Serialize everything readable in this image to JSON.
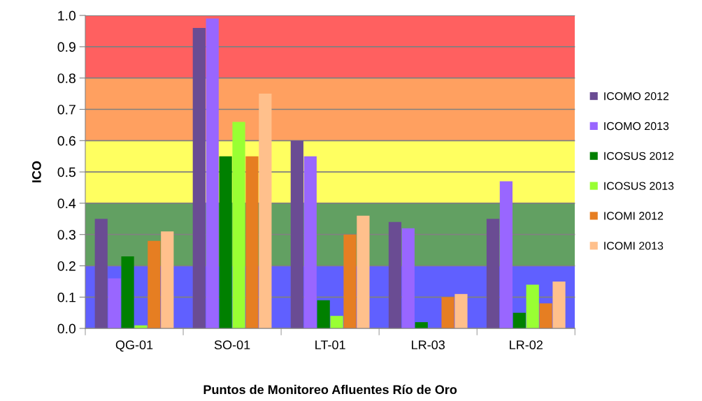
{
  "chart_data": {
    "type": "bar",
    "xlabel": "Puntos de Monitoreo Afluentes Río de Oro",
    "ylabel": "ICO",
    "categories": [
      "QG-01",
      "SO-01",
      "LT-01",
      "LR-03",
      "LR-02"
    ],
    "series": [
      {
        "name": "ICOMO 2012",
        "color": "#6a4c93",
        "values": [
          0.35,
          0.96,
          0.6,
          0.34,
          0.35
        ]
      },
      {
        "name": "ICOMO 2013",
        "color": "#9966ff",
        "values": [
          0.16,
          0.99,
          0.55,
          0.32,
          0.47
        ]
      },
      {
        "name": "ICOSUS 2012",
        "color": "#008000",
        "values": [
          0.23,
          0.55,
          0.09,
          0.02,
          0.05
        ]
      },
      {
        "name": "ICOSUS 2013",
        "color": "#99ff33",
        "values": [
          0.01,
          0.66,
          0.04,
          0,
          0.14
        ]
      },
      {
        "name": "ICOMI 2012",
        "color": "#e67e22",
        "values": [
          0.28,
          0.55,
          0.3,
          0.1,
          0.08
        ]
      },
      {
        "name": "ICOMI 2013",
        "color": "#ffc08c",
        "values": [
          0.31,
          0.75,
          0.36,
          0.11,
          0.15
        ]
      }
    ],
    "ylim": [
      0,
      1
    ],
    "yticks": [
      {
        "value": 0,
        "label": "0.0"
      },
      0.1,
      0.2,
      0.3,
      0.4,
      0.5,
      0.6,
      0.7,
      0.8,
      0.9,
      {
        "value": 1,
        "label": "1.0"
      }
    ],
    "bands": [
      {
        "axis": "y",
        "from": 0,
        "to": 0.2,
        "color": "#6060ff"
      },
      {
        "axis": "y",
        "from": 0.2,
        "to": 0.4,
        "color": "#62a062"
      },
      {
        "axis": "y",
        "from": 0.4,
        "to": 0.6,
        "color": "#ffff60"
      },
      {
        "axis": "y",
        "from": 0.6,
        "to": 0.8,
        "color": "#ffa060"
      },
      {
        "axis": "y",
        "from": 0.8,
        "to": 1.0,
        "color": "#ff6060"
      }
    ],
    "grid": "y",
    "legend": "right"
  }
}
